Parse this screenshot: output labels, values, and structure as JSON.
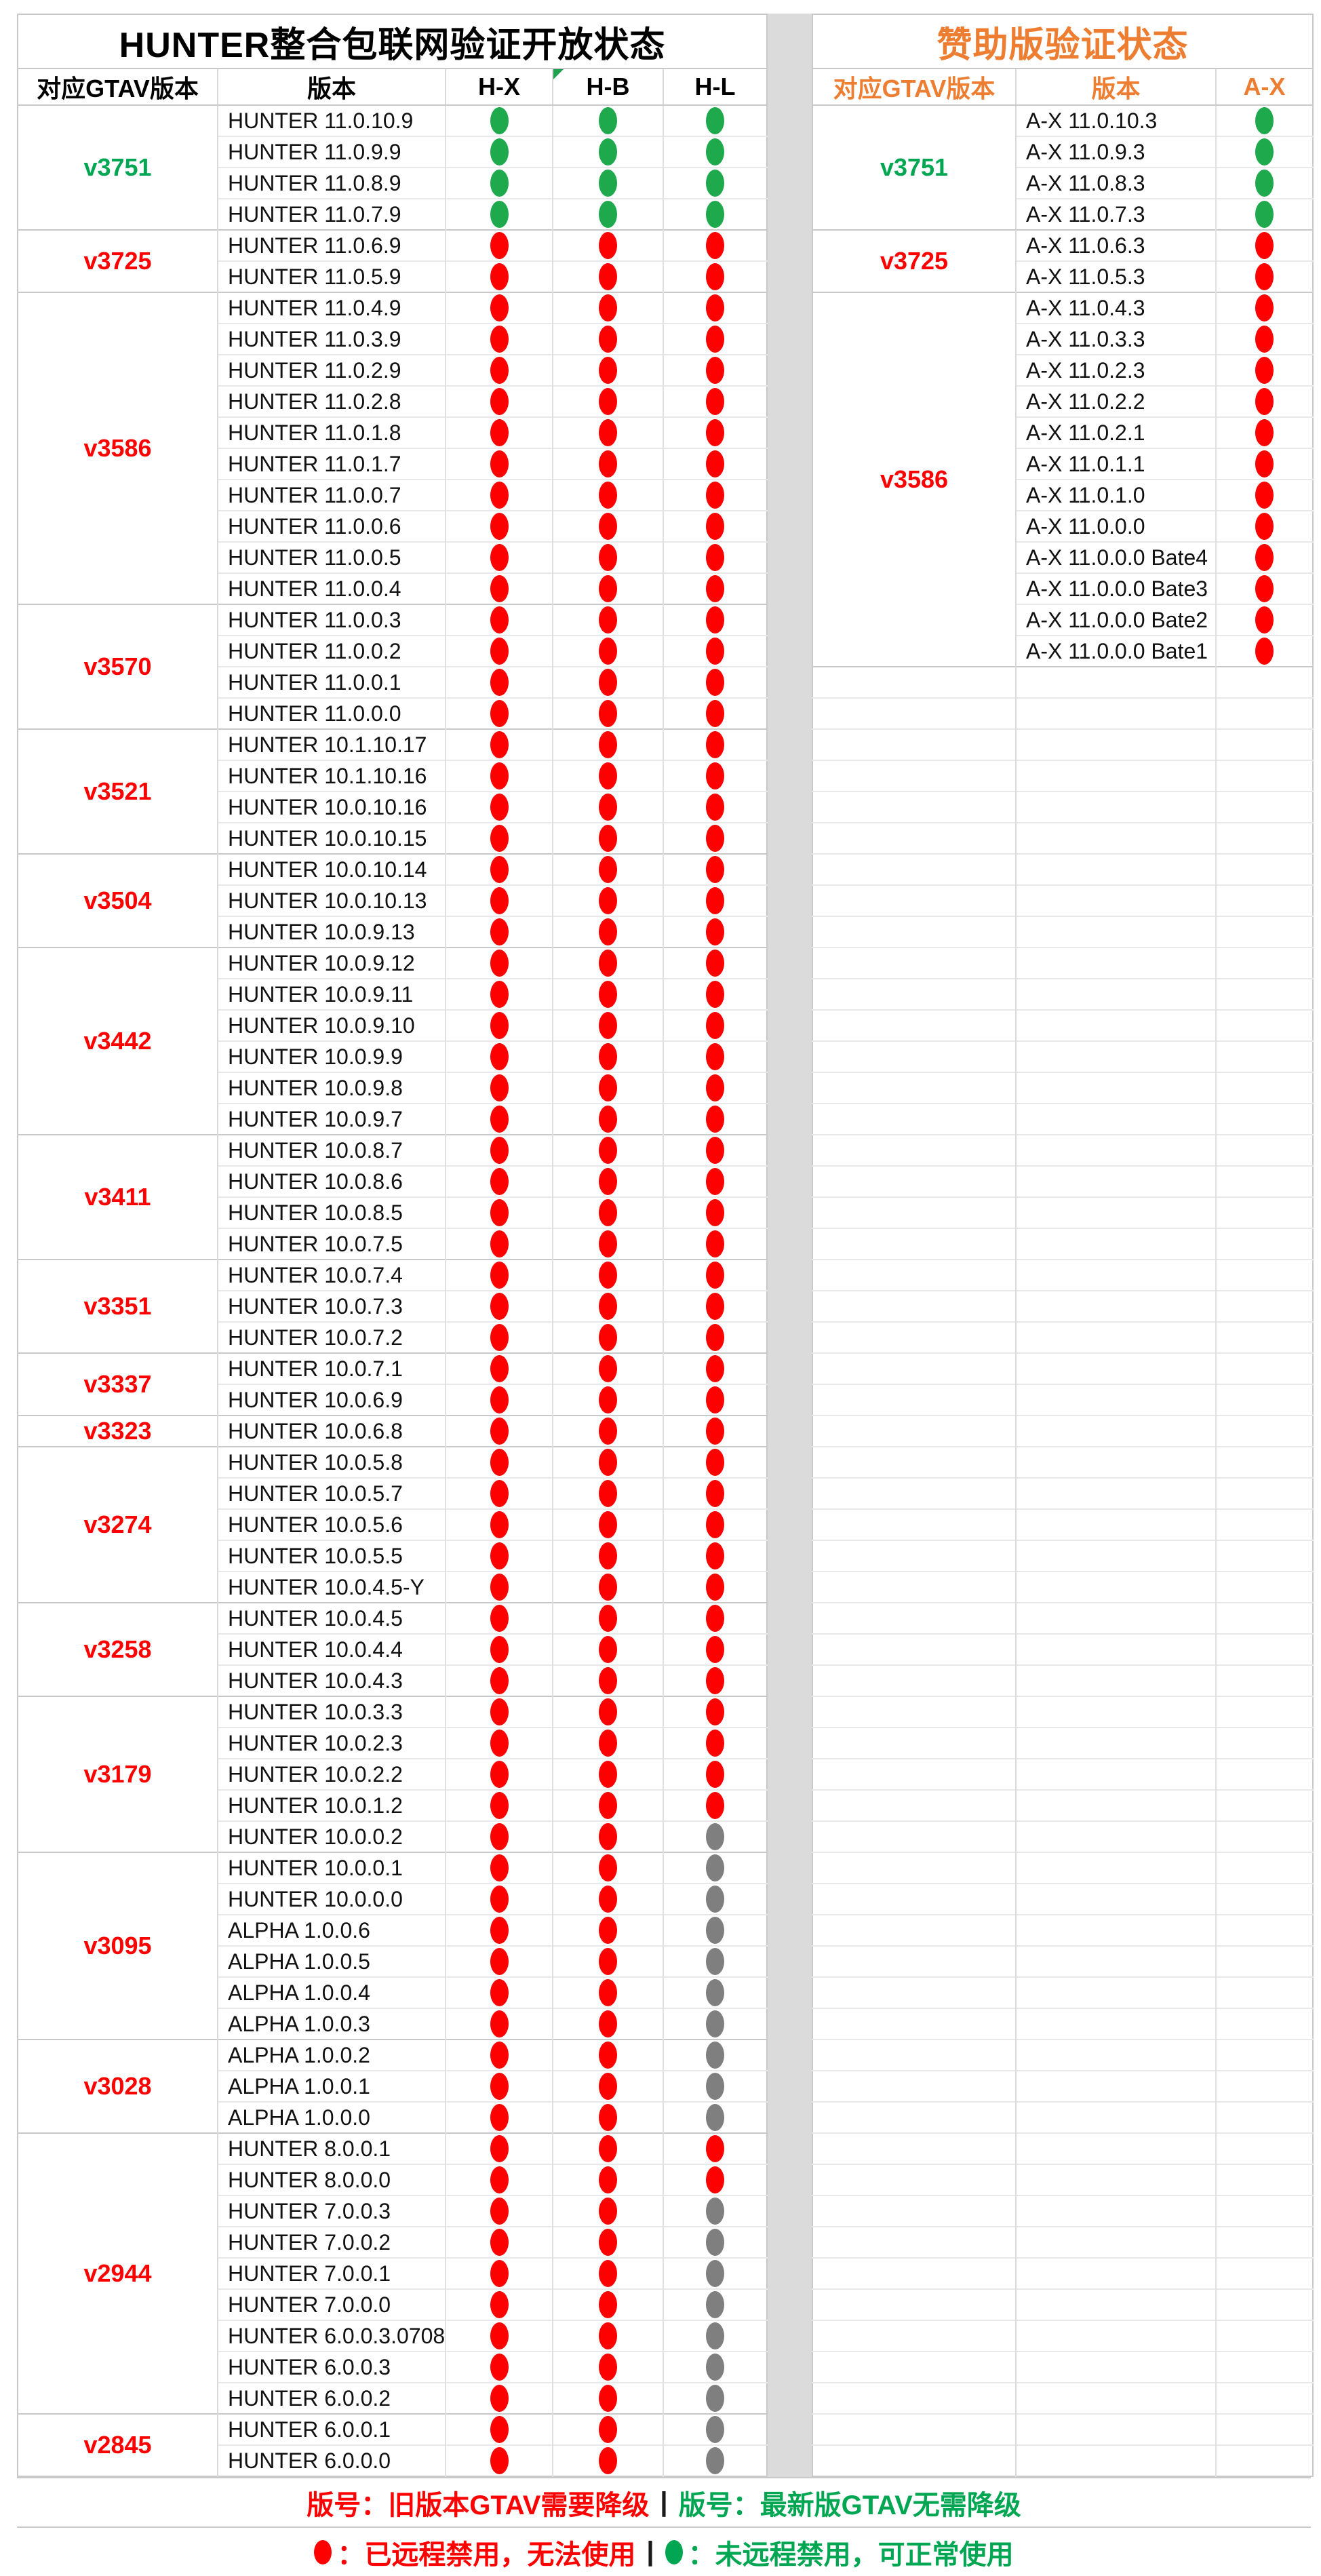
{
  "colors": {
    "red": "#FE0000",
    "green_text": "#00A651",
    "green_dot": "#1EA94C",
    "gray_dot": "#7F7F7F",
    "orange": "#ED7D31",
    "gap_strip": "#DBDBDB"
  },
  "left_table": {
    "title": "HUNTER整合包联网验证开放状态",
    "headers": [
      "对应GTAV版本",
      "版本",
      "H-X",
      "H-B",
      "H-L"
    ],
    "marker_header_index": 3,
    "groups": [
      {
        "gtav": "v3751",
        "label_color": "green",
        "rows": [
          [
            "HUNTER 11.0.10.9",
            "GGG"
          ],
          [
            "HUNTER 11.0.9.9",
            "GGG"
          ],
          [
            "HUNTER 11.0.8.9",
            "GGG"
          ],
          [
            "HUNTER 11.0.7.9",
            "GGG"
          ]
        ]
      },
      {
        "gtav": "v3725",
        "label_color": "red",
        "rows": [
          [
            "HUNTER 11.0.6.9",
            "RRR"
          ],
          [
            "HUNTER 11.0.5.9",
            "RRR"
          ]
        ]
      },
      {
        "gtav": "v3586",
        "label_color": "red",
        "rows": [
          [
            "HUNTER 11.0.4.9",
            "RRR"
          ],
          [
            "HUNTER 11.0.3.9",
            "RRR"
          ],
          [
            "HUNTER 11.0.2.9",
            "RRR"
          ],
          [
            "HUNTER 11.0.2.8",
            "RRR"
          ],
          [
            "HUNTER 11.0.1.8",
            "RRR"
          ],
          [
            "HUNTER 11.0.1.7",
            "RRR"
          ],
          [
            "HUNTER 11.0.0.7",
            "RRR"
          ],
          [
            "HUNTER 11.0.0.6",
            "RRR"
          ],
          [
            "HUNTER 11.0.0.5",
            "RRR"
          ],
          [
            "HUNTER 11.0.0.4",
            "RRR"
          ]
        ]
      },
      {
        "gtav": "v3570",
        "label_color": "red",
        "rows": [
          [
            "HUNTER 11.0.0.3",
            "RRR"
          ],
          [
            "HUNTER 11.0.0.2",
            "RRR"
          ],
          [
            "HUNTER 11.0.0.1",
            "RRR"
          ],
          [
            "HUNTER 11.0.0.0",
            "RRR"
          ]
        ]
      },
      {
        "gtav": "v3521",
        "label_color": "red",
        "rows": [
          [
            "HUNTER 10.1.10.17",
            "RRR"
          ],
          [
            "HUNTER 10.1.10.16",
            "RRR"
          ],
          [
            "HUNTER 10.0.10.16",
            "RRR"
          ],
          [
            "HUNTER 10.0.10.15",
            "RRR"
          ]
        ]
      },
      {
        "gtav": "v3504",
        "label_color": "red",
        "rows": [
          [
            "HUNTER 10.0.10.14",
            "RRR"
          ],
          [
            "HUNTER 10.0.10.13",
            "RRR"
          ],
          [
            "HUNTER 10.0.9.13",
            "RRR"
          ]
        ]
      },
      {
        "gtav": "v3442",
        "label_color": "red",
        "rows": [
          [
            "HUNTER 10.0.9.12",
            "RRR"
          ],
          [
            "HUNTER 10.0.9.11",
            "RRR"
          ],
          [
            "HUNTER 10.0.9.10",
            "RRR"
          ],
          [
            "HUNTER 10.0.9.9",
            "RRR"
          ],
          [
            "HUNTER 10.0.9.8",
            "RRR"
          ],
          [
            "HUNTER 10.0.9.7",
            "RRR"
          ]
        ]
      },
      {
        "gtav": "v3411",
        "label_color": "red",
        "rows": [
          [
            "HUNTER 10.0.8.7",
            "RRR"
          ],
          [
            "HUNTER 10.0.8.6",
            "RRR"
          ],
          [
            "HUNTER 10.0.8.5",
            "RRR"
          ],
          [
            "HUNTER 10.0.7.5",
            "RRR"
          ]
        ]
      },
      {
        "gtav": "v3351",
        "label_color": "red",
        "rows": [
          [
            "HUNTER 10.0.7.4",
            "RRR"
          ],
          [
            "HUNTER 10.0.7.3",
            "RRR"
          ],
          [
            "HUNTER 10.0.7.2",
            "RRR"
          ]
        ]
      },
      {
        "gtav": "v3337",
        "label_color": "red",
        "rows": [
          [
            "HUNTER 10.0.7.1",
            "RRR"
          ],
          [
            "HUNTER 10.0.6.9",
            "RRR"
          ]
        ]
      },
      {
        "gtav": "v3323",
        "label_color": "red",
        "rows": [
          [
            "HUNTER 10.0.6.8",
            "RRR"
          ]
        ]
      },
      {
        "gtav": "v3274",
        "label_color": "red",
        "rows": [
          [
            "HUNTER 10.0.5.8",
            "RRR"
          ],
          [
            "HUNTER 10.0.5.7",
            "RRR"
          ],
          [
            "HUNTER 10.0.5.6",
            "RRR"
          ],
          [
            "HUNTER 10.0.5.5",
            "RRR"
          ],
          [
            "HUNTER 10.0.4.5-Y",
            "RRR"
          ]
        ]
      },
      {
        "gtav": "v3258",
        "label_color": "red",
        "rows": [
          [
            "HUNTER 10.0.4.5",
            "RRR"
          ],
          [
            "HUNTER 10.0.4.4",
            "RRR"
          ],
          [
            "HUNTER 10.0.4.3",
            "RRR"
          ]
        ]
      },
      {
        "gtav": "v3179",
        "label_color": "red",
        "rows": [
          [
            "HUNTER 10.0.3.3",
            "RRR"
          ],
          [
            "HUNTER 10.0.2.3",
            "RRR"
          ],
          [
            "HUNTER 10.0.2.2",
            "RRR"
          ],
          [
            "HUNTER 10.0.1.2",
            "RRR"
          ],
          [
            "HUNTER 10.0.0.2",
            "RRX"
          ]
        ]
      },
      {
        "gtav": "v3095",
        "label_color": "red",
        "rows": [
          [
            "HUNTER 10.0.0.1",
            "RRX"
          ],
          [
            "HUNTER 10.0.0.0",
            "RRX"
          ],
          [
            "ALPHA 1.0.0.6",
            "RRX"
          ],
          [
            "ALPHA 1.0.0.5",
            "RRX"
          ],
          [
            "ALPHA 1.0.0.4",
            "RRX"
          ],
          [
            "ALPHA 1.0.0.3",
            "RRX"
          ]
        ]
      },
      {
        "gtav": "v3028",
        "label_color": "red",
        "rows": [
          [
            "ALPHA 1.0.0.2",
            "RRX"
          ],
          [
            "ALPHA 1.0.0.1",
            "RRX"
          ],
          [
            "ALPHA 1.0.0.0",
            "RRX"
          ]
        ]
      },
      {
        "gtav": "v2944",
        "label_color": "red",
        "rows": [
          [
            "HUNTER 8.0.0.1",
            "RRR"
          ],
          [
            "HUNTER 8.0.0.0",
            "RRR"
          ],
          [
            "HUNTER 7.0.0.3",
            "RRX"
          ],
          [
            "HUNTER 7.0.0.2",
            "RRX"
          ],
          [
            "HUNTER 7.0.0.1",
            "RRX"
          ],
          [
            "HUNTER 7.0.0.0",
            "RRX"
          ],
          [
            "HUNTER 6.0.0.3.0708",
            "RRX"
          ],
          [
            "HUNTER 6.0.0.3",
            "RRX"
          ],
          [
            "HUNTER 6.0.0.2",
            "RRX"
          ]
        ]
      },
      {
        "gtav": "v2845",
        "label_color": "red",
        "rows": [
          [
            "HUNTER 6.0.0.1",
            "RRX"
          ],
          [
            "HUNTER 6.0.0.0",
            "RRX"
          ]
        ]
      }
    ]
  },
  "right_table": {
    "title": "赞助版验证状态",
    "headers": [
      "对应GTAV版本",
      "版本",
      "A-X"
    ],
    "groups": [
      {
        "gtav": "v3751",
        "label_color": "green",
        "rows": [
          [
            "A-X 11.0.10.3",
            "G"
          ],
          [
            "A-X 11.0.9.3",
            "G"
          ],
          [
            "A-X 11.0.8.3",
            "G"
          ],
          [
            "A-X 11.0.7.3",
            "G"
          ]
        ]
      },
      {
        "gtav": "v3725",
        "label_color": "red",
        "rows": [
          [
            "A-X 11.0.6.3",
            "R"
          ],
          [
            "A-X 11.0.5.3",
            "R"
          ]
        ]
      },
      {
        "gtav": "v3586",
        "label_color": "red",
        "rows": [
          [
            "A-X 11.0.4.3",
            "R"
          ],
          [
            "A-X 11.0.3.3",
            "R"
          ],
          [
            "A-X 11.0.2.3",
            "R"
          ],
          [
            "A-X 11.0.2.2",
            "R"
          ],
          [
            "A-X 11.0.2.1",
            "R"
          ],
          [
            "A-X 11.0.1.1",
            "R"
          ],
          [
            "A-X 11.0.1.0",
            "R"
          ],
          [
            "A-X 11.0.0.0",
            "R"
          ],
          [
            "A-X 11.0.0.0 Bate4",
            "R"
          ],
          [
            "A-X 11.0.0.0 Bate3",
            "R"
          ],
          [
            "A-X 11.0.0.0 Bate2",
            "R"
          ],
          [
            "A-X 11.0.0.0 Bate1",
            "R"
          ]
        ]
      }
    ],
    "empty_rows": 58
  },
  "footer": {
    "line1": {
      "red_text": "版号：旧版本GTAV需要降级",
      "divider": "|",
      "green_text": "版号：最新版GTAV无需降级"
    },
    "line2": {
      "red_text": "：已远程禁用，无法使用",
      "divider": "|",
      "green_text": "：未远程禁用，可正常使用"
    }
  }
}
